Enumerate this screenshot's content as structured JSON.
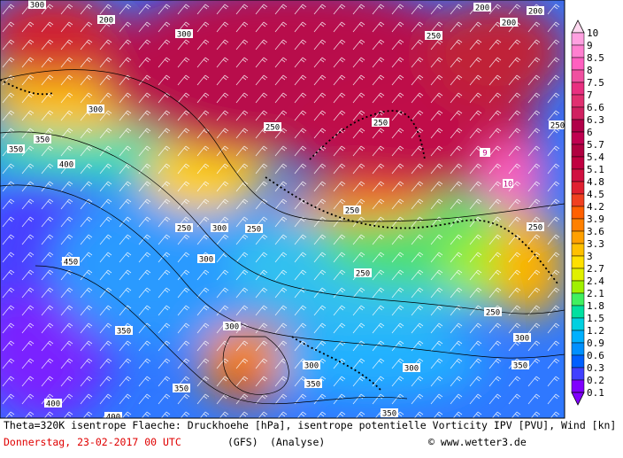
{
  "map": {
    "contour_labels": [
      "300",
      "300",
      "250",
      "300",
      "350",
      "350",
      "400",
      "450",
      "250",
      "250",
      "250",
      "300",
      "300",
      "250",
      "250",
      "300",
      "300",
      "350",
      "300",
      "300",
      "350",
      "350",
      "350",
      "400",
      "400",
      "350",
      "200",
      "200",
      "200",
      "200",
      "250",
      "250",
      "250",
      "250"
    ],
    "pv_labels": [
      "9",
      "10"
    ]
  },
  "legend": {
    "labels": [
      "10",
      "9",
      "8.5",
      "8",
      "7.5",
      "7",
      "6.6",
      "6.3",
      "6",
      "5.7",
      "5.4",
      "5.1",
      "4.8",
      "4.5",
      "4.2",
      "3.9",
      "3.6",
      "3.3",
      "3",
      "2.7",
      "2.4",
      "2.1",
      "1.8",
      "1.5",
      "1.2",
      "0.9",
      "0.6",
      "0.3",
      "0.2",
      "0.1"
    ]
  },
  "footer": {
    "caption": "Theta=320K isentrope Flaeche: Druckhoehe [hPa], isentrope potentielle Vorticity IPV [PVU], Wind [kn]",
    "date": "Donnerstag, 23-02-2017  00 UTC",
    "model": "(GFS)",
    "run": "(Analyse)",
    "copyright": "© www.wetter3.de"
  }
}
